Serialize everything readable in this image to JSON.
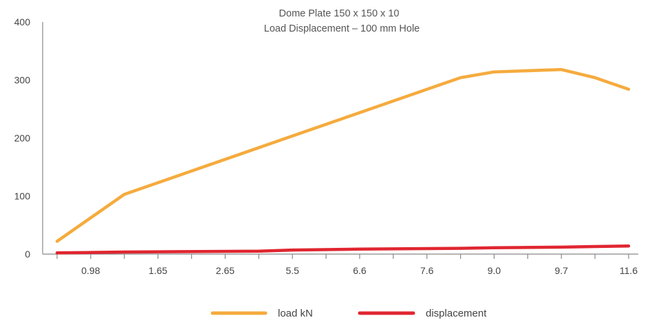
{
  "chart_data": {
    "type": "line",
    "title": "Dome Plate 150 x 150 x 10",
    "subtitle": "Load Displacement – 100 mm Hole",
    "xlabel": "",
    "ylabel": "",
    "categories": [
      "",
      "0.98",
      "",
      "1.65",
      "",
      "2.65",
      "",
      "5.5",
      "",
      "6.6",
      "",
      "7.6",
      "",
      "9.0",
      "",
      "9.7",
      "",
      "11.6"
    ],
    "x_tick_labels": [
      "0.98",
      "1.65",
      "2.65",
      "5.5",
      "6.6",
      "7.6",
      "9.0",
      "9.7",
      "11.6"
    ],
    "y_ticks": [
      "0",
      "100",
      "200",
      "300",
      "400"
    ],
    "ylim": [
      0,
      400
    ],
    "grid": false,
    "legend_position": "bottom-center",
    "series": [
      {
        "name": "load kN",
        "color": "#f5ab3e",
        "values": [
          22,
          null,
          103,
          null,
          null,
          null,
          null,
          null,
          null,
          null,
          null,
          null,
          304,
          314,
          null,
          318,
          304,
          284
        ]
      },
      {
        "name": "displacement",
        "color": "#e02630",
        "values": [
          2,
          null,
          3.5,
          null,
          null,
          null,
          5,
          7,
          null,
          8.5,
          null,
          null,
          10,
          11,
          null,
          12,
          13,
          14
        ]
      }
    ]
  }
}
